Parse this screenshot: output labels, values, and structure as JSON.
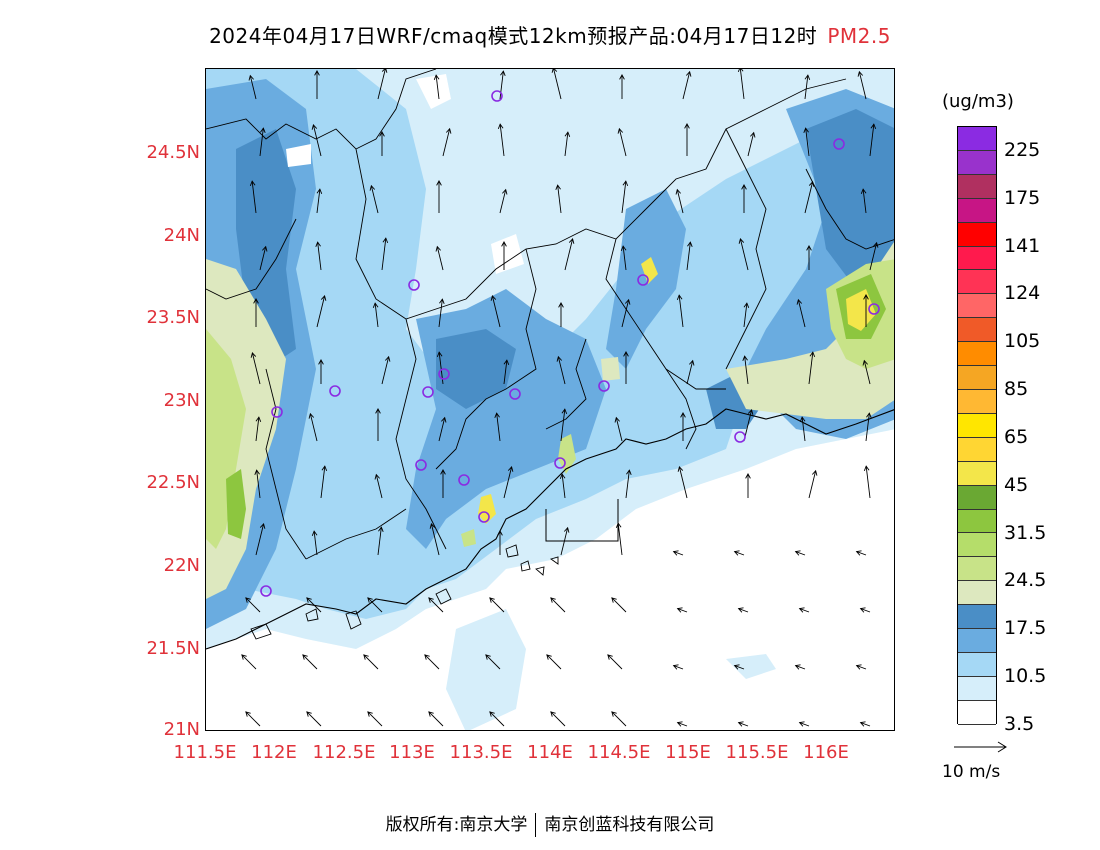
{
  "title": {
    "main": "2024年04月17日WRF/cmaq模式12km预报产品:04月17日12时",
    "variable": "PM2.5"
  },
  "map": {
    "lat_ticks": [
      "24.5N",
      "24N",
      "23.5N",
      "23N",
      "22.5N",
      "22N",
      "21.5N",
      "21N"
    ],
    "lon_ticks": [
      "111.5E",
      "112E",
      "112.5E",
      "113E",
      "113.5E",
      "114E",
      "114.5E",
      "115E",
      "115.5E",
      "116E"
    ],
    "lon_range": [
      111.5,
      116.5
    ],
    "lat_range": [
      21.0,
      25.0
    ],
    "stations_color": "#8a2be2"
  },
  "legend": {
    "unit": "(ug/m3)",
    "labels": [
      "225",
      "175",
      "141",
      "124",
      "105",
      "85",
      "65",
      "45",
      "31.5",
      "24.5",
      "17.5",
      "10.5",
      "3.5"
    ],
    "colors_top_to_bottom": [
      "#8b2be2",
      "#9932cc",
      "#b03060",
      "#c71585",
      "#ff0000",
      "#ff1a4d",
      "#ff3355",
      "#ff6666",
      "#f05a28",
      "#ff8c00",
      "#f5a623",
      "#ffb833",
      "#ffe600",
      "#ffd633",
      "#f3e64a",
      "#6aa833",
      "#8dc63f",
      "#b5dd6a",
      "#c8e388",
      "#dde8bf",
      "#4a8ec6",
      "#6aace0",
      "#a5d8f5",
      "#d6eefa",
      "#ffffff"
    ]
  },
  "vector_ref": {
    "label": "10 m/s"
  },
  "footer": {
    "left": "版权所有:南京大学",
    "right": "南京创蓝科技有限公司"
  }
}
